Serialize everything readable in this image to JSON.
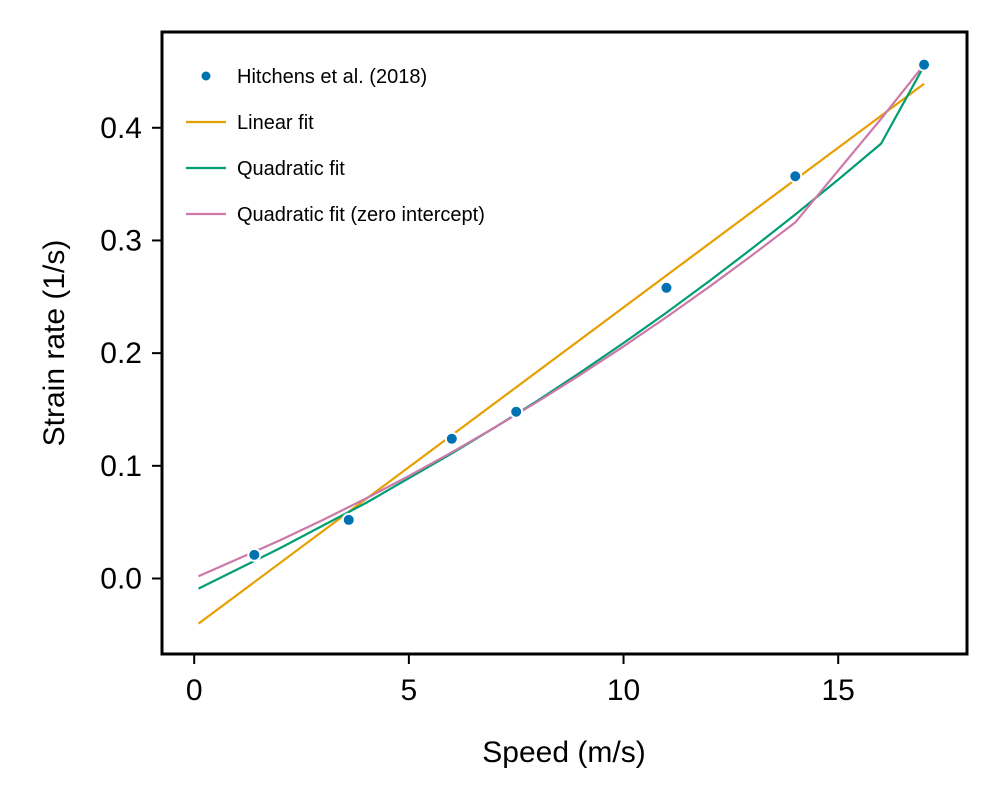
{
  "chart_data": {
    "type": "line",
    "xlabel": "Speed (m/s)",
    "ylabel": "Strain rate (1/s)",
    "xlim": [
      -0.75,
      18
    ],
    "ylim": [
      -0.067,
      0.485
    ],
    "x_ticks": [
      0,
      5,
      10,
      15
    ],
    "x_tick_labels": [
      "0",
      "5",
      "10",
      "15"
    ],
    "y_ticks": [
      0.0,
      0.1,
      0.2,
      0.3,
      0.4
    ],
    "y_tick_labels": [
      "0.0",
      "0.1",
      "0.2",
      "0.3",
      "0.4"
    ],
    "grid": false,
    "legend_position": "upper-left",
    "series": [
      {
        "name": "Hitchens et al. (2018)",
        "kind": "scatter",
        "color": "#0072b2",
        "x": [
          1.4,
          3.6,
          6.0,
          7.5,
          11.0,
          14.0,
          17.0
        ],
        "y": [
          0.021,
          0.052,
          0.124,
          0.148,
          0.258,
          0.357,
          0.456
        ]
      },
      {
        "name": "Linear fit",
        "kind": "line",
        "color": "#e69f00",
        "x": [
          0.1,
          17.0
        ],
        "y": [
          -0.04,
          0.439
        ]
      },
      {
        "name": "Quadratic fit",
        "kind": "line",
        "color": "#009e73",
        "x": [
          0.1,
          1.0,
          2.0,
          3.0,
          4.0,
          5.0,
          6.0,
          7.0,
          8.0,
          9.0,
          10.0,
          11.0,
          12.0,
          13.0,
          14.0,
          15.0,
          16.0,
          17.0
        ],
        "y": [
          -0.009,
          0.008,
          0.027,
          0.047,
          0.067,
          0.089,
          0.111,
          0.134,
          0.158,
          0.183,
          0.209,
          0.236,
          0.264,
          0.293,
          0.323,
          0.354,
          0.386,
          0.455
        ]
      },
      {
        "name": "Quadratic fit (zero intercept)",
        "kind": "line",
        "color": "#cc79a7",
        "x": [
          0.1,
          1.0,
          2.0,
          3.0,
          4.0,
          5.0,
          6.0,
          7.0,
          8.0,
          9.0,
          10.0,
          11.0,
          12.0,
          13.0,
          14.0,
          15.0,
          16.0,
          17.0
        ],
        "y": [
          0.002,
          0.017,
          0.034,
          0.052,
          0.071,
          0.091,
          0.112,
          0.134,
          0.157,
          0.181,
          0.206,
          0.232,
          0.259,
          0.287,
          0.316,
          0.362,
          0.408,
          0.456
        ]
      }
    ]
  }
}
